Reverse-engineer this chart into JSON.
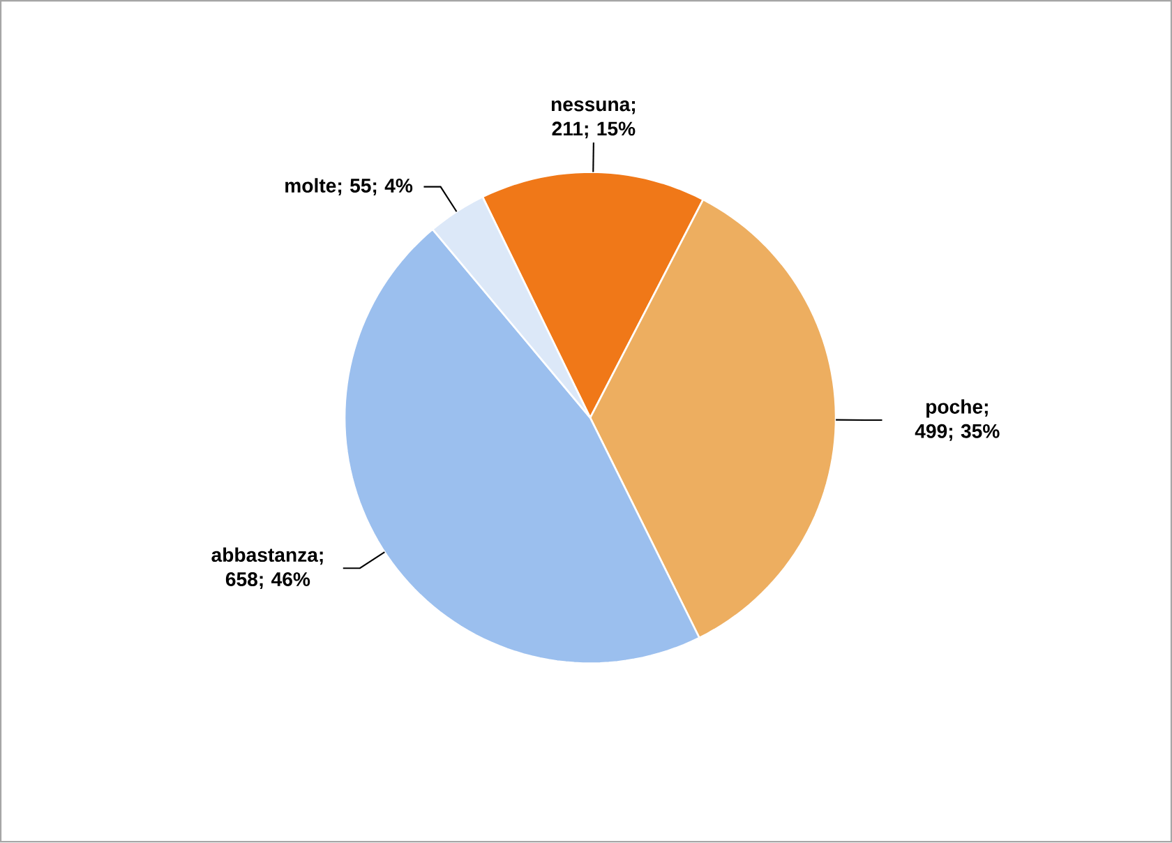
{
  "chart_data": {
    "type": "pie",
    "categories": [
      "nessuna",
      "poche",
      "abbastanza",
      "molte"
    ],
    "values": [
      211,
      499,
      658,
      55
    ],
    "value_labels": [
      "; 211; 15%",
      "; 499; 35%",
      "; 658; 46%",
      "; 55; 4%"
    ],
    "colors": [
      "#f07818",
      "#edae60",
      "#9bbfee",
      "#dce8f8"
    ]
  }
}
